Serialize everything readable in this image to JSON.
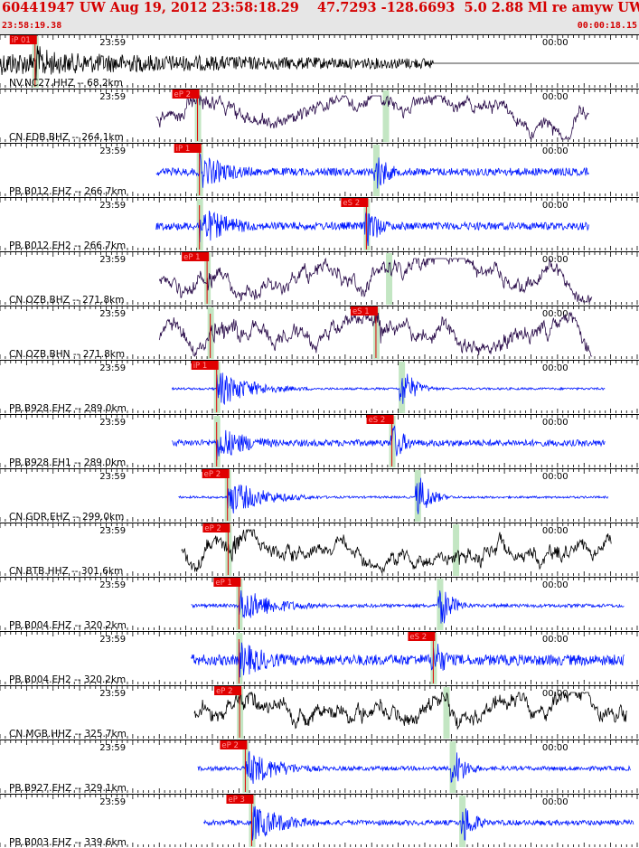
{
  "header": {
    "title": "60441947 UW Aug 19, 2012 23:58:18.29    47.7293 -128.6693  5.0 2.88 Ml re amyw UW 01    4",
    "start_time": "23:58:19.38",
    "end_time": "00:00:18.15"
  },
  "colors": {
    "pick": "#e00000",
    "trace_blue": "#0018ff",
    "trace_black": "#000000",
    "trace_purple": "#2a0c4a",
    "highlight": "#c3e6c3",
    "header_text": "#d40000"
  },
  "chart_data": {
    "type": "seismogram",
    "time_window": [
      "23:58:19.38",
      "00:00:18.15"
    ],
    "time_labels": [
      "23:59",
      "00:00"
    ],
    "channels": [
      {
        "label": "NV.NC27.HHZ -- 68.2km",
        "color": "black",
        "p_pick": "iP 01",
        "s_pick": "",
        "p_time": 0.055,
        "s_time": null,
        "start": 0.0,
        "end": 0.68,
        "noise": 0.25,
        "amp": 0.9,
        "flat": true,
        "long_period": false
      },
      {
        "label": "CN.EDB.BHZ -- 264.1km",
        "color": "purple",
        "p_pick": "eP 2",
        "s_pick": "",
        "p_time": 0.31,
        "s_time": 0.605,
        "start": 0.245,
        "end": 0.925,
        "noise": 0.25,
        "amp": 0.5,
        "flat": false,
        "long_period": true
      },
      {
        "label": "PB.B012.EHZ -- 266.7km",
        "color": "blue",
        "p_pick": "iP 1",
        "s_pick": "",
        "p_time": 0.313,
        "s_time": 0.59,
        "start": 0.245,
        "end": 0.925,
        "noise": 0.18,
        "amp": 0.85,
        "flat": false,
        "long_period": false
      },
      {
        "label": "PB.B012.EH2 -- 266.7km",
        "color": "blue",
        "p_pick": "",
        "s_pick": "eS 2",
        "p_time": 0.313,
        "s_time": 0.575,
        "start": 0.245,
        "end": 0.925,
        "noise": 0.18,
        "amp": 0.95,
        "flat": false,
        "long_period": false
      },
      {
        "label": "CN.OZB.BHZ -- 271.8km",
        "color": "purple",
        "p_pick": "eP 1",
        "s_pick": "",
        "p_time": 0.325,
        "s_time": 0.61,
        "start": 0.25,
        "end": 0.93,
        "noise": 0.3,
        "amp": 0.6,
        "flat": false,
        "long_period": true
      },
      {
        "label": "CN.OZB.BHN -- 271.8km",
        "color": "purple",
        "p_pick": "",
        "s_pick": "eS 1",
        "p_time": 0.33,
        "s_time": 0.59,
        "start": 0.25,
        "end": 0.93,
        "noise": 0.3,
        "amp": 0.85,
        "flat": false,
        "long_period": true
      },
      {
        "label": "PB.B928.EHZ -- 289.0km",
        "color": "blue",
        "p_pick": "iP 1",
        "s_pick": "",
        "p_time": 0.34,
        "s_time": 0.63,
        "start": 0.27,
        "end": 0.95,
        "noise": 0.05,
        "amp": 0.9,
        "flat": false,
        "long_period": false
      },
      {
        "label": "PB.B928.EH1 -- 289.0km",
        "color": "blue",
        "p_pick": "",
        "s_pick": "eS 2",
        "p_time": 0.34,
        "s_time": 0.615,
        "start": 0.27,
        "end": 0.95,
        "noise": 0.15,
        "amp": 0.85,
        "flat": false,
        "long_period": false
      },
      {
        "label": "CN.GDR.EHZ -- 299.0km",
        "color": "blue",
        "p_pick": "eP 2",
        "s_pick": "",
        "p_time": 0.357,
        "s_time": 0.655,
        "start": 0.28,
        "end": 0.955,
        "noise": 0.05,
        "amp": 0.9,
        "flat": false,
        "long_period": false
      },
      {
        "label": "CN.BTB.HHZ -- 301.6km",
        "color": "black",
        "p_pick": "eP 2",
        "s_pick": "",
        "p_time": 0.358,
        "s_time": 0.715,
        "start": 0.285,
        "end": 0.96,
        "noise": 0.3,
        "amp": 0.8,
        "flat": false,
        "long_period": true
      },
      {
        "label": "PB.B004.EHZ -- 320.2km",
        "color": "blue",
        "p_pick": "eP 1",
        "s_pick": "",
        "p_time": 0.375,
        "s_time": 0.69,
        "start": 0.3,
        "end": 0.98,
        "noise": 0.08,
        "amp": 0.9,
        "flat": false,
        "long_period": false
      },
      {
        "label": "PB.B004.EH2 -- 320.2km",
        "color": "blue",
        "p_pick": "",
        "s_pick": "eS 2",
        "p_time": 0.375,
        "s_time": 0.68,
        "start": 0.3,
        "end": 0.98,
        "noise": 0.25,
        "amp": 0.9,
        "flat": false,
        "long_period": false
      },
      {
        "label": "CN.MGB.HHZ -- 325.7km",
        "color": "black",
        "p_pick": "eP 2",
        "s_pick": "",
        "p_time": 0.376,
        "s_time": 0.7,
        "start": 0.305,
        "end": 0.985,
        "noise": 0.35,
        "amp": 0.75,
        "flat": false,
        "long_period": true
      },
      {
        "label": "PB.B927.EHZ -- 329.1km",
        "color": "blue",
        "p_pick": "eP 2",
        "s_pick": "",
        "p_time": 0.385,
        "s_time": 0.71,
        "start": 0.31,
        "end": 0.99,
        "noise": 0.1,
        "amp": 0.9,
        "flat": false,
        "long_period": false
      },
      {
        "label": "PB.B003.EHZ -- 339.6km",
        "color": "blue",
        "p_pick": "eP 3",
        "s_pick": "",
        "p_time": 0.395,
        "s_time": 0.725,
        "start": 0.32,
        "end": 0.995,
        "noise": 0.12,
        "amp": 0.9,
        "flat": false,
        "long_period": false
      }
    ]
  }
}
